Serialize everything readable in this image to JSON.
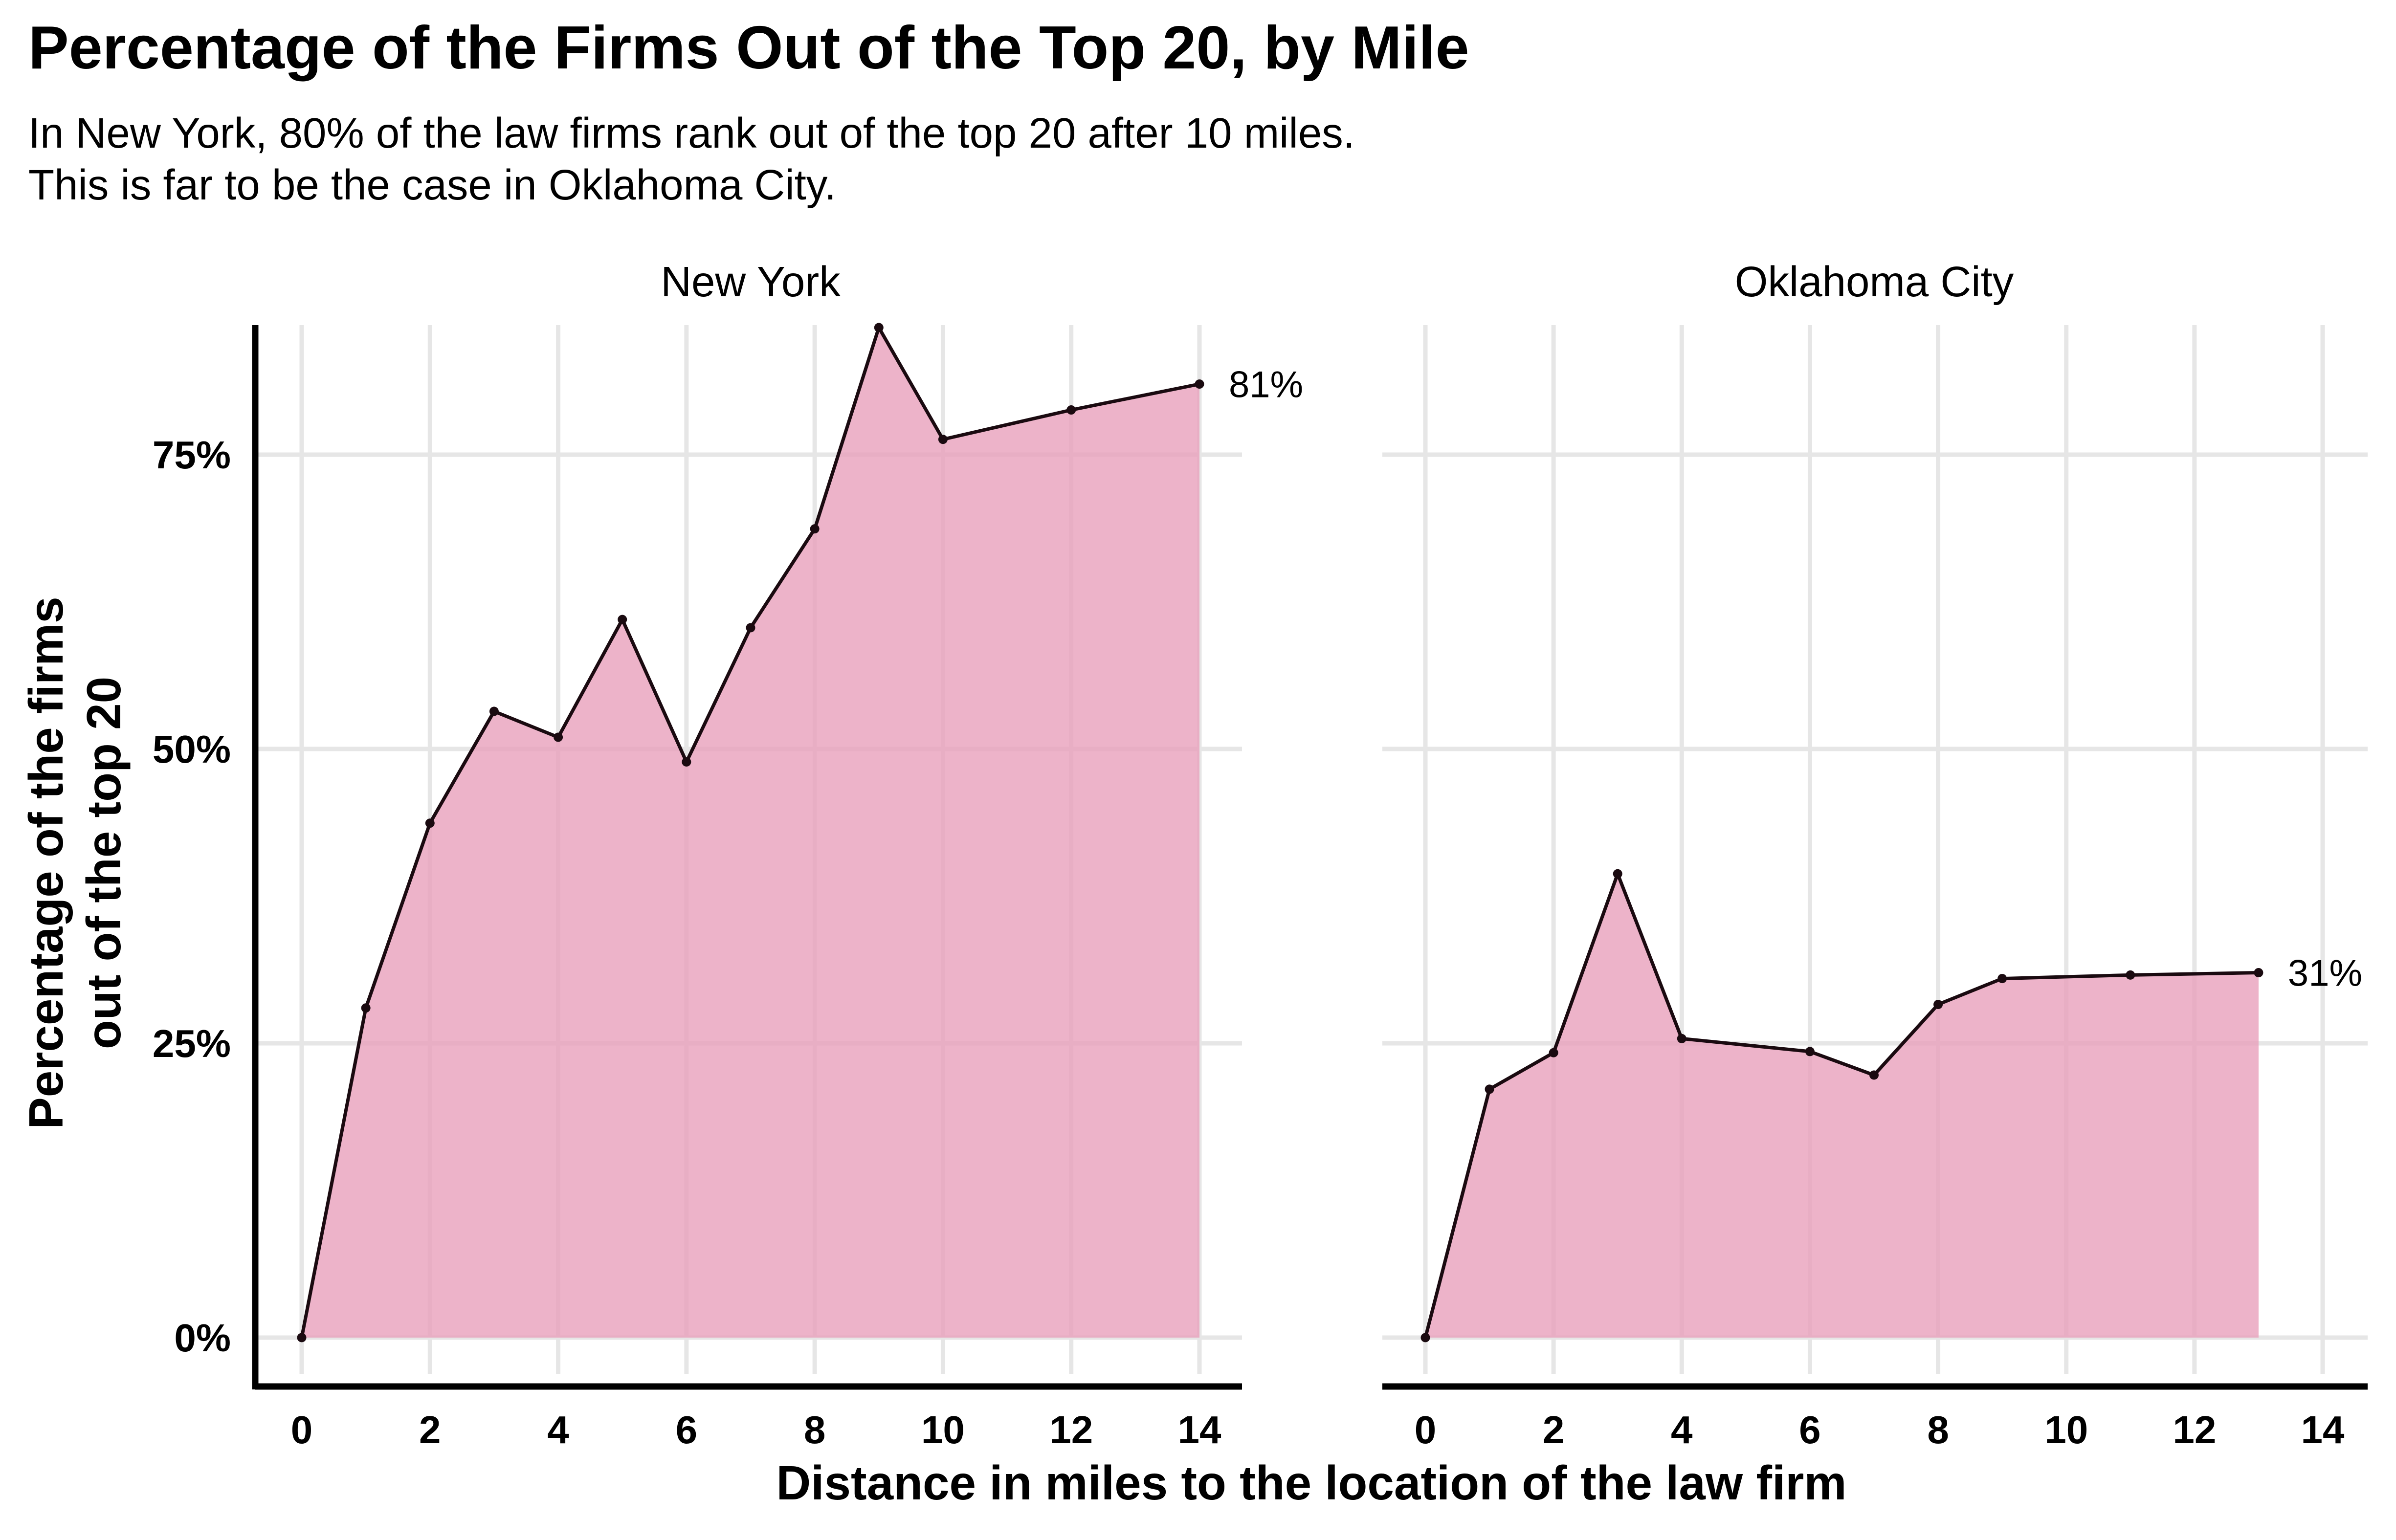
{
  "chart_data": {
    "type": "area",
    "title": "Percentage of the Firms Out of the Top 20, by Mile",
    "subtitle": [
      "In New York, 80% of the law firms rank out of the top 20 after 10 miles.",
      "This is far to be the case in Oklahoma City."
    ],
    "xlabel": "Distance in miles to the location of the law firm",
    "ylabel": [
      "Percentage of the firms",
      "out of the top 20"
    ],
    "xlim": [
      0,
      14
    ],
    "ylim": [
      0,
      87
    ],
    "x_ticks": [
      0,
      2,
      4,
      6,
      8,
      10,
      12,
      14
    ],
    "y_ticks": [
      {
        "value": 0,
        "label": "0%"
      },
      {
        "value": 25,
        "label": "25%"
      },
      {
        "value": 50,
        "label": "50%"
      },
      {
        "value": 75,
        "label": "75%"
      }
    ],
    "grid": true,
    "fill_color": "#e8a0bb",
    "line_color": "#1a0a10",
    "panels": [
      {
        "name": "New York",
        "x": [
          0,
          1,
          2,
          3,
          4,
          5,
          6,
          7,
          8,
          9,
          10,
          12,
          14
        ],
        "values": [
          0,
          28,
          43.7,
          53.2,
          51,
          61,
          48.9,
          60.3,
          68.7,
          85.8,
          76.3,
          78.8,
          81
        ],
        "end_label": "81%"
      },
      {
        "name": "Oklahoma City",
        "x": [
          0,
          1,
          2,
          3,
          4,
          6,
          7,
          8,
          9,
          11,
          13
        ],
        "values": [
          0,
          21.1,
          24.2,
          39.4,
          25.4,
          24.3,
          22.3,
          28.3,
          30.5,
          30.8,
          31
        ],
        "end_label": "31%"
      }
    ]
  }
}
